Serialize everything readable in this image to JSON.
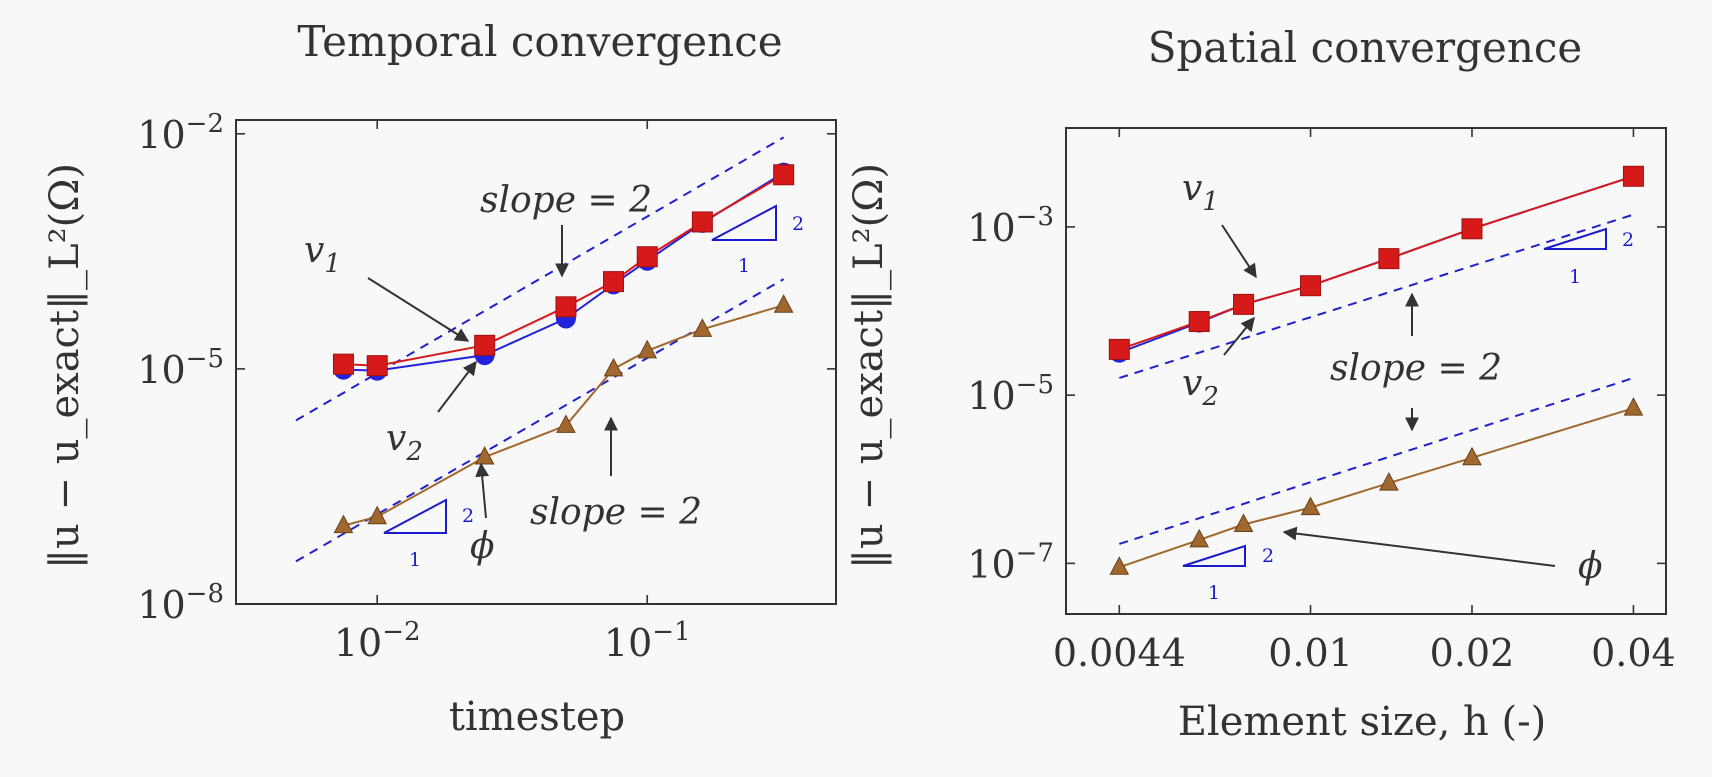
{
  "colors": {
    "v1": "#d61a1a",
    "v2": "#2222dd",
    "phi": "#a0672e",
    "slope": "#2020cc",
    "ink": "#333333"
  },
  "chart_data": [
    {
      "type": "line",
      "title": "Temporal convergence",
      "xlabel": "timestep",
      "ylabel": "‖u − u_exact‖_L²(Ω)",
      "xscale": "log",
      "yscale": "log",
      "xlim": [
        0.003,
        0.5
      ],
      "ylim": [
        1e-08,
        0.015
      ],
      "xticks": [
        {
          "value": 0.01,
          "label": "10",
          "exp": "−2"
        },
        {
          "value": 0.1,
          "label": "10",
          "exp": "−1"
        }
      ],
      "yticks": [
        {
          "value": 1e-08,
          "label": "10",
          "exp": "−8"
        },
        {
          "value": 1e-05,
          "label": "10",
          "exp": "−5"
        },
        {
          "value": 0.01,
          "label": "10",
          "exp": "−2"
        }
      ],
      "series": [
        {
          "name": "v1",
          "marker": "square",
          "x": [
            0.0075,
            0.01,
            0.025,
            0.05,
            0.075,
            0.1,
            0.16,
            0.32
          ],
          "y": [
            1.15e-05,
            1.1e-05,
            2e-05,
            6.2e-05,
            0.00013,
            0.00027,
            0.00075,
            0.003
          ]
        },
        {
          "name": "v2",
          "marker": "circle",
          "x": [
            0.0075,
            0.01,
            0.025,
            0.05,
            0.075,
            0.1,
            0.16,
            0.32
          ],
          "y": [
            9.8e-06,
            9.5e-06,
            1.5e-05,
            4.4e-05,
            0.00012,
            0.00024,
            0.00073,
            0.0032
          ]
        },
        {
          "name": "phi",
          "marker": "triangle",
          "x": [
            0.0075,
            0.01,
            0.025,
            0.05,
            0.075,
            0.1,
            0.16,
            0.32
          ],
          "y": [
            1e-07,
            1.3e-07,
            7.5e-07,
            1.9e-06,
            1e-05,
            1.7e-05,
            3.2e-05,
            6.5e-05
          ]
        }
      ],
      "reference_lines": [
        {
          "label": "slope = 2",
          "x": [
            0.005,
            0.32
          ],
          "y": [
            2.2e-06,
            0.009
          ]
        },
        {
          "label": "slope = 2",
          "x": [
            0.005,
            0.32
          ],
          "y": [
            3.5e-08,
            0.00014
          ]
        }
      ],
      "annotations": {
        "v1": "v",
        "v1_sub": "1",
        "v2": "v",
        "v2_sub": "2",
        "phi": "ϕ",
        "slope_upper": "slope = 2",
        "slope_lower": "slope = 2",
        "tri1_run": "1",
        "tri1_rise": "2",
        "tri2_run": "1",
        "tri2_rise": "2"
      }
    },
    {
      "type": "line",
      "title": "Spatial convergence",
      "xlabel": "Element size, h (-)",
      "ylabel": "‖u − u_exact‖_L²(Ω)",
      "xscale": "log",
      "yscale": "log",
      "xlim": [
        0.0035,
        0.046
      ],
      "ylim": [
        2.5e-08,
        0.015
      ],
      "xticks": [
        {
          "value": 0.0044,
          "label": "0.0044"
        },
        {
          "value": 0.01,
          "label": "0.01"
        },
        {
          "value": 0.02,
          "label": "0.02"
        },
        {
          "value": 0.04,
          "label": "0.04"
        }
      ],
      "yticks": [
        {
          "value": 1e-07,
          "label": "10",
          "exp": "−7"
        },
        {
          "value": 1e-05,
          "label": "10",
          "exp": "−5"
        },
        {
          "value": 0.001,
          "label": "10",
          "exp": "−3"
        }
      ],
      "series": [
        {
          "name": "v1",
          "marker": "square",
          "x": [
            0.0044,
            0.0062,
            0.0075,
            0.01,
            0.014,
            0.02,
            0.04
          ],
          "y": [
            3.5e-05,
            7.5e-05,
            0.00012,
            0.0002,
            0.00042,
            0.00095,
            0.004
          ]
        },
        {
          "name": "v2",
          "marker": "circle",
          "x": [
            0.0044,
            0.0062,
            0.0075,
            0.01,
            0.014,
            0.02,
            0.04
          ],
          "y": [
            3.2e-05,
            7.3e-05,
            0.00012,
            0.0002,
            0.00042,
            0.00095,
            0.004
          ]
        },
        {
          "name": "phi",
          "marker": "triangle",
          "x": [
            0.0044,
            0.0062,
            0.0075,
            0.01,
            0.014,
            0.02,
            0.04
          ],
          "y": [
            9e-08,
            1.9e-07,
            2.9e-07,
            4.6e-07,
            9e-07,
            1.8e-06,
            7e-06
          ]
        }
      ],
      "reference_lines": [
        {
          "label": "slope = 2",
          "x": [
            0.0044,
            0.04
          ],
          "y": [
            1.6e-05,
            0.0014
          ]
        },
        {
          "label": "slope = 2",
          "x": [
            0.0044,
            0.04
          ],
          "y": [
            1.7e-07,
            1.6e-05
          ]
        }
      ],
      "annotations": {
        "v1": "v",
        "v1_sub": "1",
        "v2": "v",
        "v2_sub": "2",
        "phi": "ϕ",
        "slope": "slope = 2",
        "tri1_run": "1",
        "tri1_rise": "2",
        "tri2_run": "1",
        "tri2_rise": "2"
      }
    }
  ]
}
